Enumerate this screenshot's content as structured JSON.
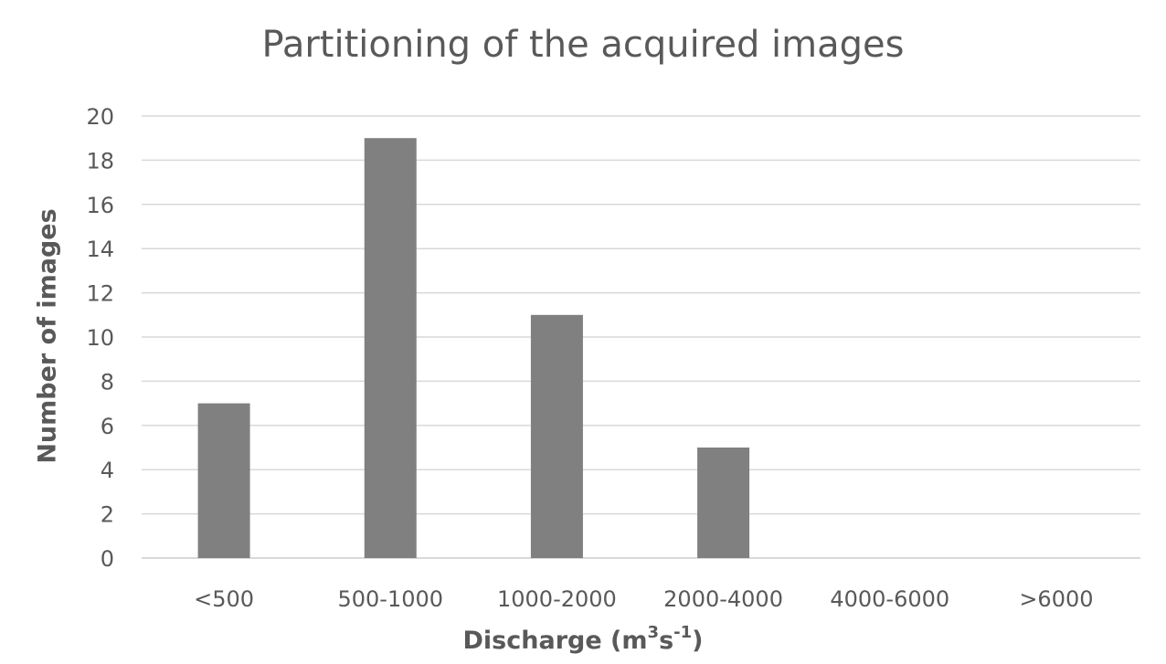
{
  "chart_data": {
    "type": "bar",
    "title": "Partitioning of the acquired images",
    "xlabel": {
      "prefix": "Discharge (m",
      "sup1": "3",
      "mid": "s",
      "sup2": "-1",
      "suffix": ")"
    },
    "ylabel": "Number of images",
    "categories": [
      "<500",
      "500-1000",
      "1000-2000",
      "2000-4000",
      "4000-6000",
      ">6000"
    ],
    "values": [
      7,
      19,
      11,
      5,
      0,
      0
    ],
    "ylim": [
      0,
      20
    ],
    "yticks": [
      0,
      2,
      4,
      6,
      8,
      10,
      12,
      14,
      16,
      18,
      20
    ],
    "grid": true,
    "legend": "none",
    "bar_color": "#808080",
    "grid_color": "#d9d9d9",
    "text_color": "#595959"
  }
}
